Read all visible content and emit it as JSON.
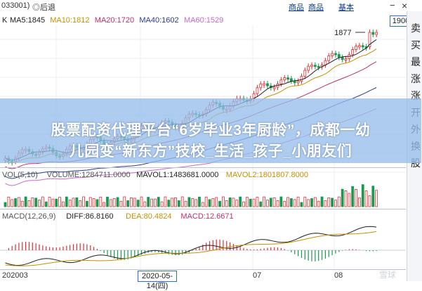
{
  "header": {
    "code_tab": "033001)",
    "back_label": "◎后退",
    "link_1": "商品",
    "link_2": "基本",
    "minimize": "−",
    "close": "×"
  },
  "main_panel": {
    "symbol": "K",
    "ma_labels": [
      {
        "text": "MA5:1845",
        "color": "#222222"
      },
      {
        "text": "MA10:1812",
        "color": "#c89000"
      },
      {
        "text": "MA20:1720",
        "color": "#c0306a"
      },
      {
        "text": "MA40:1602",
        "color": "#2a3a9a"
      },
      {
        "text": "MA60:1529",
        "color": "#cc66cc"
      }
    ],
    "price_box": "1900",
    "high_label": "1877"
  },
  "banner": {
    "line_1": "股票配资代理平台“6岁毕业3年厨龄”，成都一幼",
    "line_2": "儿园变“新东方”技校_生活_孩子_小朋友们"
  },
  "volume_panel": {
    "labels": [
      {
        "text": "VOL(5,10)",
        "color": "#555555"
      },
      {
        "text": "VOLUME:1284711.0000",
        "color": "#555555"
      },
      {
        "text": "MAVOL1:1483681.0000",
        "color": "#222222"
      },
      {
        "text": "MAVOL2:1801807.8000",
        "color": "#c89000"
      }
    ]
  },
  "macd_panel": {
    "labels": [
      {
        "text": "MACD(12,26,9)",
        "color": "#555555"
      },
      {
        "text": "DIFF:86.8160",
        "color": "#222222"
      },
      {
        "text": "DEA:80.4824",
        "color": "#c89000"
      },
      {
        "text": "MACD:12.6671",
        "color": "#c0306a"
      }
    ]
  },
  "x_axis": {
    "labels": [
      "202003",
      "07",
      "08"
    ],
    "cursor_date": "2020-05-14(四)"
  },
  "sidebar": {
    "chars": [
      "卖",
      "买",
      "最",
      "涨",
      "涨",
      "开",
      "外",
      "换",
      "股"
    ]
  },
  "watermark": "雪球",
  "colors": {
    "up": "#e03030",
    "down": "#1a9a50",
    "ma5": "#222222",
    "ma10": "#c89000",
    "ma20": "#c0306a",
    "ma40": "#2a3a9a",
    "ma60": "#cc66cc"
  }
}
